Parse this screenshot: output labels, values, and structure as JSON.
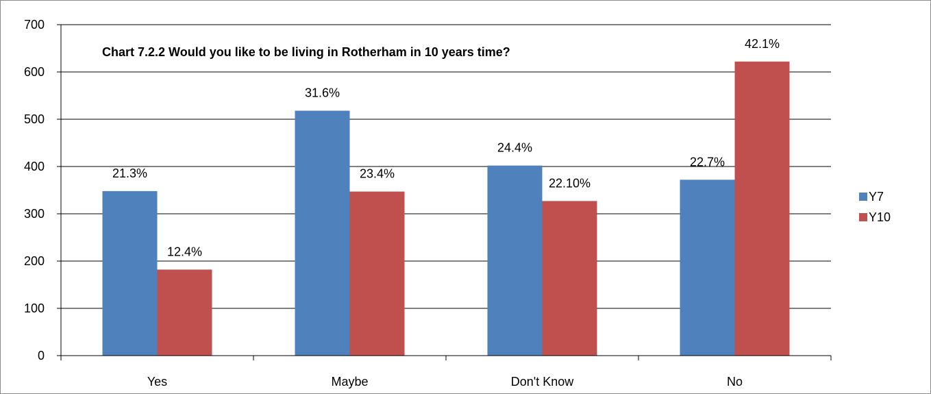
{
  "chart_data": {
    "type": "bar",
    "title": "Chart 7.2.2 Would you like to be living in Rotherham in 10 years time?",
    "categories": [
      "Yes",
      "Maybe",
      "Don't Know",
      "No"
    ],
    "series": [
      {
        "name": "Y7",
        "color": "#4f81bd",
        "values": [
          348,
          518,
          402,
          372
        ],
        "labels": [
          "21.3%",
          "31.6%",
          "24.4%",
          "22.7%"
        ]
      },
      {
        "name": "Y10",
        "color": "#c0504d",
        "values": [
          182,
          347,
          327,
          622
        ],
        "labels": [
          "12.4%",
          "23.4%",
          "22.10%",
          "42.1%"
        ]
      }
    ],
    "ylim": [
      0,
      700
    ],
    "yticks": [
      0,
      100,
      200,
      300,
      400,
      500,
      600,
      700
    ],
    "grid": true,
    "legend": "right"
  }
}
